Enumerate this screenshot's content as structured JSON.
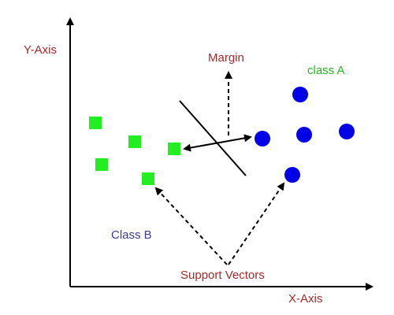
{
  "labels": {
    "y_axis": "Y-Axis",
    "x_axis": "X-Axis",
    "margin": "Margin",
    "class_a": "class A",
    "class_b": "Class B",
    "support_vectors": "Support Vectors"
  },
  "colors": {
    "axis_label": "#a52a2a",
    "class_a_label": "#22bb22",
    "class_b_label": "#3b3b8c",
    "class_a_points": "#0000e6",
    "class_b_points": "#22ee22",
    "lines": "#000000"
  },
  "shapes": {
    "class_a_marker": "circle",
    "class_b_marker": "square"
  }
}
